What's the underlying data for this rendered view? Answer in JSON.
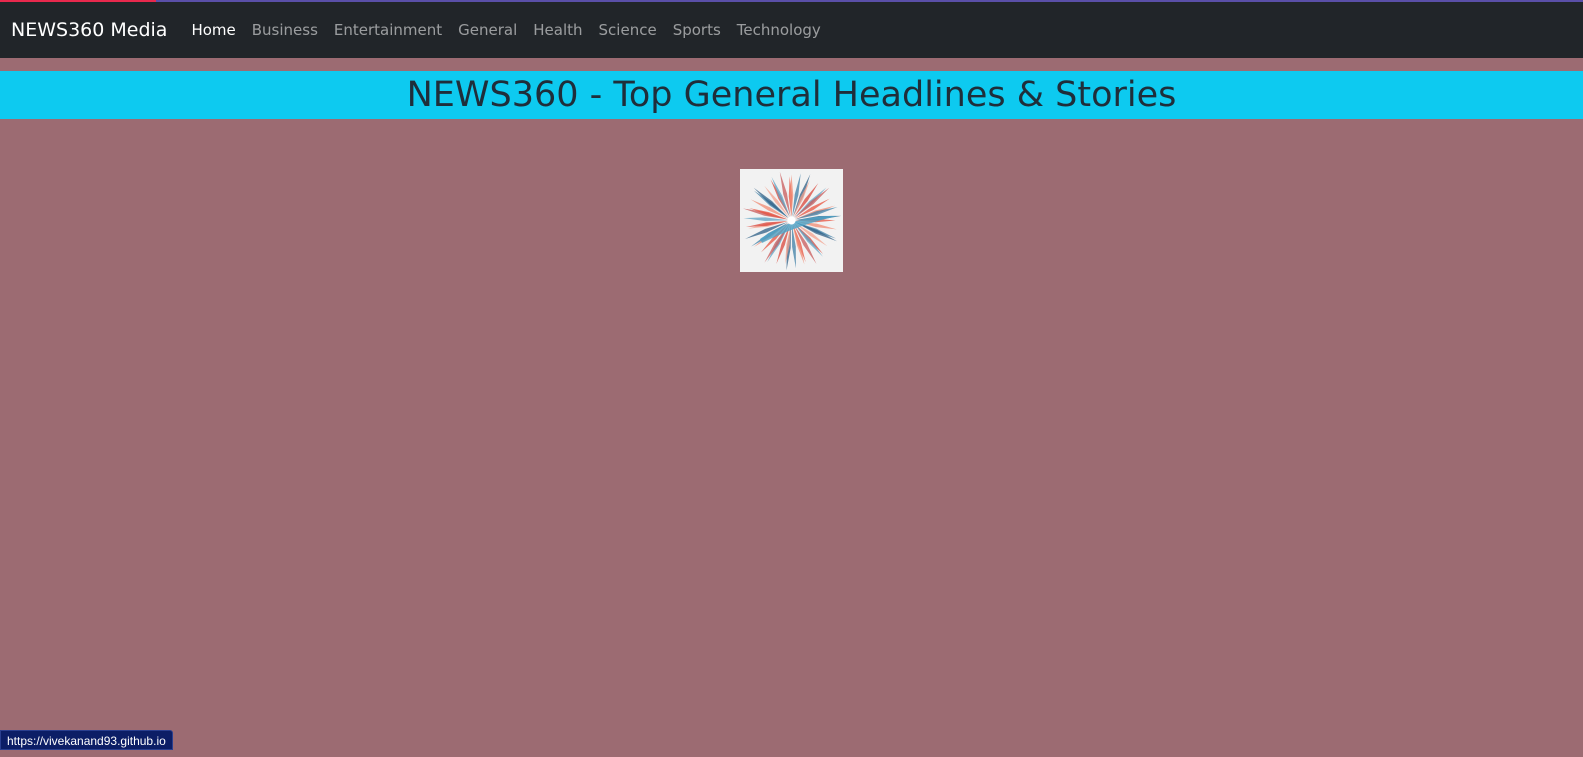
{
  "navbar": {
    "brand": "NEWS360 Media",
    "links": [
      {
        "label": "Home",
        "active": true
      },
      {
        "label": "Business"
      },
      {
        "label": "Entertainment"
      },
      {
        "label": "General"
      },
      {
        "label": "Health"
      },
      {
        "label": "Science"
      },
      {
        "label": "Sports"
      },
      {
        "label": "Technology"
      }
    ]
  },
  "main": {
    "heading": "NEWS360 - Top General Headlines & Stories"
  },
  "loader": {
    "icon": "loading-spinner-icon"
  },
  "status_bar": {
    "url": "https://vivekanand93.github.io"
  },
  "colors": {
    "page_background": "#9c6b72",
    "navbar_background": "#212529",
    "banner_background": "#0dcaf0",
    "progress_bar": "#e8294d"
  }
}
